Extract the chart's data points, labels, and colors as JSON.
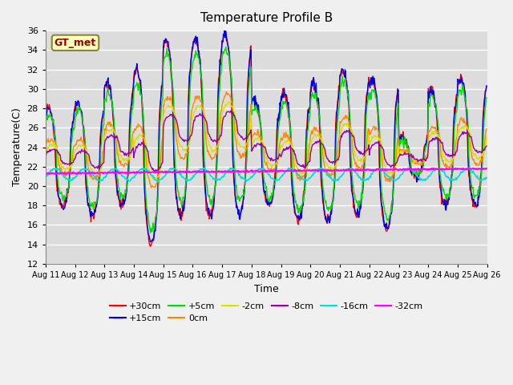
{
  "title": "Temperature Profile B",
  "xlabel": "Time",
  "ylabel": "Temperature(C)",
  "ylim": [
    12,
    36
  ],
  "annotation": "GT_met",
  "plot_bg": "#dcdcdc",
  "fig_bg": "#f0f0f0",
  "grid_color": "white",
  "x_tick_labels": [
    "Aug 11",
    "Aug 12",
    "Aug 13",
    "Aug 14",
    "Aug 15",
    "Aug 16",
    "Aug 17",
    "Aug 18",
    "Aug 19",
    "Aug 20",
    "Aug 21",
    "Aug 22",
    "Aug 23",
    "Aug 24",
    "Aug 25",
    "Aug 26"
  ],
  "series": [
    {
      "label": "+30cm",
      "color": "#ff0000",
      "lw": 1.0
    },
    {
      "label": "+15cm",
      "color": "#0000dd",
      "lw": 1.0
    },
    {
      "label": "+5cm",
      "color": "#00dd00",
      "lw": 1.0
    },
    {
      "label": "0cm",
      "color": "#ff8800",
      "lw": 1.0
    },
    {
      "label": "-2cm",
      "color": "#dddd00",
      "lw": 1.0
    },
    {
      "label": "-8cm",
      "color": "#9900aa",
      "lw": 1.0
    },
    {
      "label": "-16cm",
      "color": "#00dddd",
      "lw": 1.2
    },
    {
      "label": "-32cm",
      "color": "#ff00ff",
      "lw": 1.5
    }
  ],
  "day_peaks": [
    28,
    28.5,
    30.5,
    32,
    35,
    35,
    35.5,
    29,
    29.5,
    30.5,
    32,
    31,
    25,
    30,
    31,
    31
  ],
  "day_troughs": [
    18,
    17,
    18,
    14,
    17,
    17,
    17,
    18,
    16.5,
    16.5,
    17,
    15.5,
    21,
    18,
    18,
    20
  ],
  "base_temp": 21.2,
  "legend_ncol": 6
}
